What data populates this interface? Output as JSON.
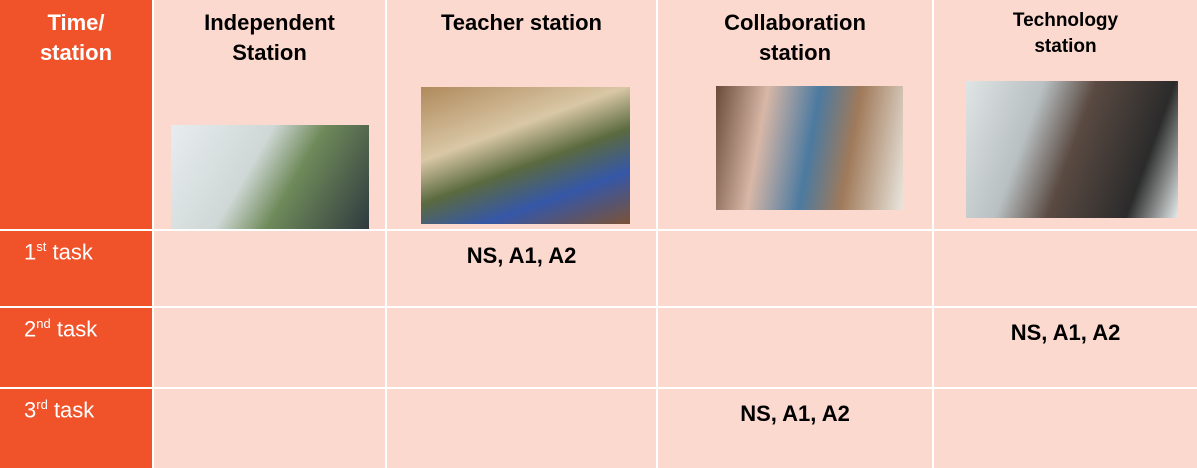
{
  "table": {
    "columns": [
      "Time/ station",
      "Independent Station",
      "Teacher station",
      "Collaboration station",
      "Technology station"
    ],
    "rows": [
      {
        "ordinal": "1",
        "suffix": "st",
        "label": "task",
        "cells": [
          null,
          "NS, A1, A2",
          null,
          null
        ]
      },
      {
        "ordinal": "2",
        "suffix": "nd",
        "label": "task",
        "cells": [
          null,
          null,
          null,
          "NS, A1, A2"
        ]
      },
      {
        "ordinal": "3",
        "suffix": "rd",
        "label": "task",
        "cells": [
          null,
          null,
          "NS, A1, A2",
          null
        ]
      }
    ]
  }
}
